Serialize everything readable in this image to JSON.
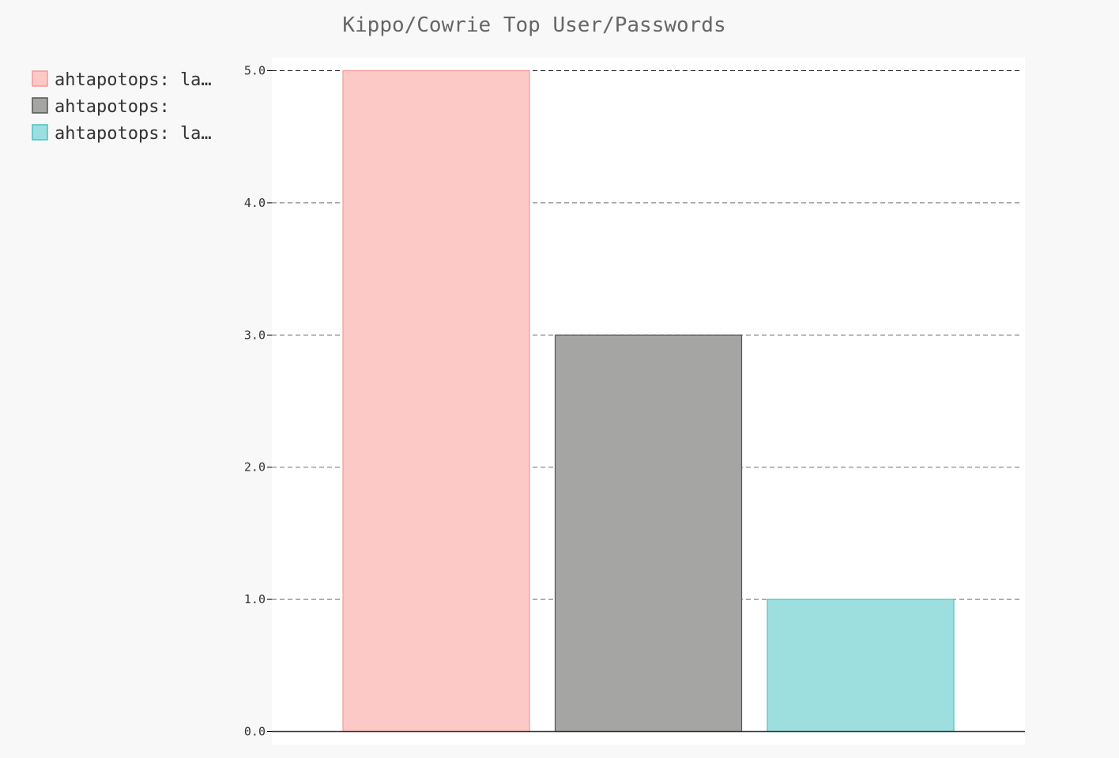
{
  "chart_data": {
    "type": "bar",
    "title": "Kippo/Cowrie Top User/Passwords",
    "xlabel": "",
    "ylabel": "",
    "ylim": [
      0,
      5
    ],
    "yticks": [
      "0.0",
      "1.0",
      "2.0",
      "3.0",
      "4.0",
      "5.0"
    ],
    "grid": true,
    "legend_position": "left",
    "series": [
      {
        "name": "ahtapotops: la…",
        "value": 5,
        "fill": "#fdc9c6",
        "stroke": "#f49a98"
      },
      {
        "name": "ahtapotops:",
        "value": 3,
        "fill": "#a5a5a4",
        "stroke": "#555555"
      },
      {
        "name": "ahtapotops: la…",
        "value": 1,
        "fill": "#9ddfdf",
        "stroke": "#4cc0c1"
      }
    ]
  }
}
